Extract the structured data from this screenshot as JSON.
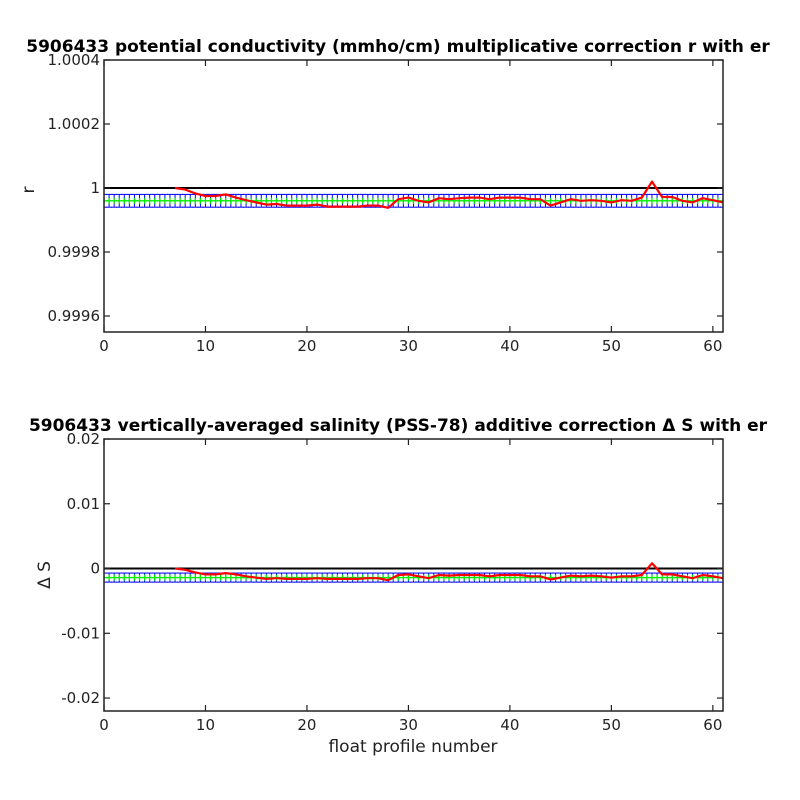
{
  "chart_data": [
    {
      "type": "line",
      "title": "5906433 potential conductivity (mmho/cm) multiplicative correction r with er",
      "xlabel": "",
      "ylabel": "r",
      "xlim": [
        0,
        61
      ],
      "ylim": [
        0.99955,
        1.0004
      ],
      "xticks": [
        0,
        10,
        20,
        30,
        40,
        50,
        60
      ],
      "yticks": [
        0.9996,
        0.9998,
        1,
        1.0002,
        1.0004
      ],
      "ytick_labels": [
        "0.9996",
        "0.9998",
        "1",
        "1.0002",
        "1.0004"
      ],
      "reference_line": 1,
      "grid": false,
      "series": [
        {
          "color": "#ff0000",
          "style": "solid line",
          "x": [
            7,
            8,
            9,
            10,
            11,
            12,
            13,
            14,
            15,
            16,
            17,
            18,
            19,
            20,
            21,
            22,
            23,
            24,
            25,
            26,
            27,
            28,
            29,
            30,
            31,
            32,
            33,
            34,
            35,
            36,
            37,
            38,
            39,
            40,
            41,
            42,
            43,
            44,
            45,
            46,
            47,
            48,
            49,
            50,
            51,
            52,
            53,
            54,
            55,
            56,
            57,
            58,
            59,
            60,
            61
          ],
          "values": [
            1.0,
            0.999995,
            0.999983,
            0.999975,
            0.999975,
            0.99998,
            0.99997,
            0.999962,
            0.999955,
            0.999948,
            0.99995,
            0.999945,
            0.999945,
            0.999945,
            0.999948,
            0.999942,
            0.999942,
            0.999942,
            0.999942,
            0.999945,
            0.999945,
            0.999938,
            0.999965,
            0.99997,
            0.99996,
            0.999955,
            0.999968,
            0.999965,
            0.999968,
            0.99997,
            0.99997,
            0.999965,
            0.99997,
            0.99997,
            0.99997,
            0.999965,
            0.999965,
            0.999945,
            0.999955,
            0.999965,
            0.99996,
            0.999962,
            0.99996,
            0.999955,
            0.999962,
            0.99996,
            0.99997,
            1.00002,
            0.999972,
            0.999972,
            0.99996,
            0.999955,
            0.999968,
            0.999962,
            0.999955
          ]
        },
        {
          "color": "#00ee00",
          "style": "markers with blue error bars",
          "x_range": [
            0,
            61
          ],
          "value": 0.99996,
          "error": 2e-05,
          "error_color": "#0000ff"
        }
      ]
    },
    {
      "type": "line",
      "title": "5906433 vertically-averaged salinity (PSS-78) additive correction Δ S with er",
      "xlabel": "float profile number",
      "ylabel": "Δ S",
      "xlim": [
        0,
        61
      ],
      "ylim": [
        -0.022,
        0.02
      ],
      "xticks": [
        0,
        10,
        20,
        30,
        40,
        50,
        60
      ],
      "yticks": [
        -0.02,
        -0.01,
        0,
        0.01,
        0.02
      ],
      "ytick_labels": [
        "-0.02",
        "-0.01",
        "0",
        "0.01",
        "0.02"
      ],
      "reference_line": 0,
      "grid": false,
      "series": [
        {
          "color": "#ff0000",
          "style": "solid line",
          "x": [
            7,
            8,
            9,
            10,
            11,
            12,
            13,
            14,
            15,
            16,
            17,
            18,
            19,
            20,
            21,
            22,
            23,
            24,
            25,
            26,
            27,
            28,
            29,
            30,
            31,
            32,
            33,
            34,
            35,
            36,
            37,
            38,
            39,
            40,
            41,
            42,
            43,
            44,
            45,
            46,
            47,
            48,
            49,
            50,
            51,
            52,
            53,
            54,
            55,
            56,
            57,
            58,
            59,
            60,
            61
          ],
          "values": [
            0.0,
            -0.0002,
            -0.0006,
            -0.0009,
            -0.0009,
            -0.0007,
            -0.0009,
            -0.0012,
            -0.0014,
            -0.0016,
            -0.0015,
            -0.0016,
            -0.0016,
            -0.0016,
            -0.0015,
            -0.0016,
            -0.0016,
            -0.0016,
            -0.0016,
            -0.0015,
            -0.0015,
            -0.0018,
            -0.001,
            -0.0009,
            -0.0012,
            -0.0015,
            -0.001,
            -0.0011,
            -0.001,
            -0.001,
            -0.001,
            -0.0012,
            -0.001,
            -0.001,
            -0.001,
            -0.0012,
            -0.0012,
            -0.0017,
            -0.0014,
            -0.0011,
            -0.0012,
            -0.0011,
            -0.0012,
            -0.0014,
            -0.0012,
            -0.0012,
            -0.001,
            0.0008,
            -0.0009,
            -0.0009,
            -0.0012,
            -0.0015,
            -0.001,
            -0.0012,
            -0.0015
          ]
        },
        {
          "color": "#00ee00",
          "style": "markers with blue error bars",
          "x_range": [
            0,
            61
          ],
          "value": -0.0014,
          "error": 0.0007,
          "error_color": "#0000ff"
        }
      ]
    }
  ]
}
